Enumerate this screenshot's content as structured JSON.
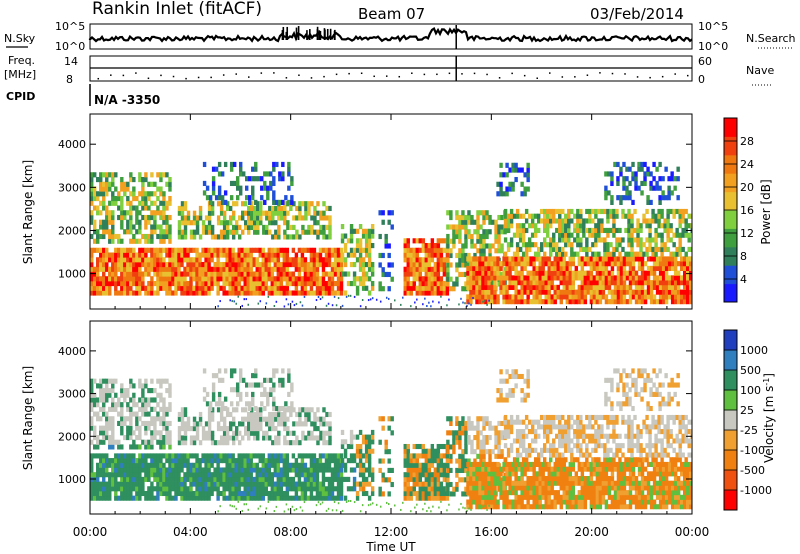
{
  "header": {
    "station": "Rankin Inlet (fitACF)",
    "beam": "Beam 07",
    "date": "03/Feb/2014"
  },
  "top_panels": {
    "nsky_label": "N.Sky",
    "nsky_ticks": [
      "10^5",
      "10^0"
    ],
    "nsearch_label": "N.Search",
    "nsearch_ticks": [
      "10^5",
      "10^0"
    ],
    "freq_label_1": "Freq.",
    "freq_label_2": "[MHz]",
    "freq_ticks": [
      "14",
      "8"
    ],
    "nave_label": "Nave",
    "nave_ticks": [
      "60",
      "0"
    ],
    "cpid_label": "CPID",
    "cpid_value": "N/A -3350"
  },
  "chart_data": [
    {
      "type": "heatmap",
      "name": "power",
      "ylabel": "Slant Range [km]",
      "yticks": [
        "1000",
        "2000",
        "3000",
        "4000"
      ],
      "ylim": [
        180,
        4700
      ],
      "xlim": [
        0,
        24
      ],
      "colorbar": {
        "label": "Power [dB]",
        "ticks": [
          "4",
          "8",
          "12",
          "16",
          "20",
          "24",
          "28"
        ],
        "colors": [
          "#1a1aff",
          "#1f4fd6",
          "#2f7f5a",
          "#3f9f3f",
          "#7fcf3f",
          "#e8c030",
          "#f2a020",
          "#f07810",
          "#f04010",
          "#ff0000"
        ]
      }
    },
    {
      "type": "heatmap",
      "name": "velocity",
      "ylabel": "Slant Range [km]",
      "yticks": [
        "1000",
        "2000",
        "3000",
        "4000"
      ],
      "ylim": [
        180,
        4700
      ],
      "xlim": [
        0,
        24
      ],
      "xlabel": "Time UT",
      "xticks": [
        "00:00",
        "04:00",
        "08:00",
        "12:00",
        "16:00",
        "20:00",
        "00:00"
      ],
      "colorbar": {
        "label": "Velocity [m s",
        "label_sup": "-1",
        "label_end": "]",
        "ticks": [
          "1000",
          "500",
          "100",
          "25",
          "-25",
          "-100",
          "-500",
          "-1000"
        ],
        "colors": [
          "#1f3fbf",
          "#2f7fbf",
          "#2f8f5f",
          "#5fbf3f",
          "#c8c8c0",
          "#f0a030",
          "#f08010",
          "#f05010",
          "#ff0000"
        ]
      }
    }
  ]
}
